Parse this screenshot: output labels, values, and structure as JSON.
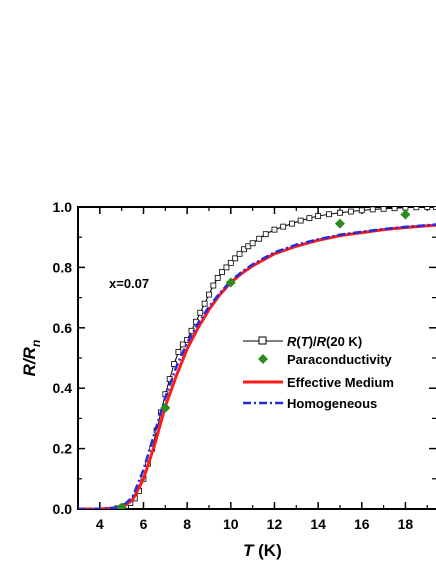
{
  "chart_data": {
    "type": "line",
    "xlim": [
      3,
      19.4
    ],
    "ylim": [
      0,
      1.0
    ],
    "x_ticks": [
      4,
      6,
      8,
      10,
      12,
      14,
      16,
      18
    ],
    "y_ticks": [
      0.0,
      0.2,
      0.4,
      0.6,
      0.8,
      1.0
    ],
    "x_tick_labels": [
      "4",
      "6",
      "8",
      "10",
      "12",
      "14",
      "16",
      "18"
    ],
    "y_tick_labels": [
      "0.0",
      "0.2",
      "0.4",
      "0.6",
      "0.8",
      "1.0"
    ],
    "xlabel_main": "T",
    "xlabel_unit": "(K)",
    "ylabel_main": "R/R",
    "ylabel_sub": "n",
    "annotation": "x=0.07",
    "legend_position": "right-middle",
    "series": [
      {
        "name": "R(T)/R(20 K)",
        "style": "line-open-squares",
        "color": "#000000",
        "x": [
          3.0,
          4.0,
          4.8,
          5.0,
          5.2,
          5.4,
          5.6,
          5.8,
          6.0,
          6.2,
          6.4,
          6.6,
          6.8,
          7.0,
          7.2,
          7.4,
          7.6,
          7.8,
          8.0,
          8.2,
          8.4,
          8.6,
          8.8,
          9.0,
          9.2,
          9.4,
          9.6,
          9.8,
          10.0,
          10.2,
          10.4,
          10.6,
          10.8,
          11.0,
          11.3,
          11.6,
          12.0,
          12.4,
          12.8,
          13.2,
          13.6,
          14.0,
          14.5,
          15.0,
          15.5,
          16.0,
          16.5,
          17.0,
          17.5,
          18.0,
          18.5,
          19.0,
          19.4
        ],
        "y": [
          0.0,
          0.0,
          0.002,
          0.005,
          0.01,
          0.02,
          0.035,
          0.06,
          0.1,
          0.15,
          0.2,
          0.26,
          0.32,
          0.38,
          0.43,
          0.48,
          0.52,
          0.545,
          0.56,
          0.59,
          0.62,
          0.65,
          0.68,
          0.71,
          0.74,
          0.765,
          0.785,
          0.8,
          0.815,
          0.83,
          0.845,
          0.86,
          0.87,
          0.88,
          0.895,
          0.91,
          0.925,
          0.935,
          0.945,
          0.955,
          0.963,
          0.97,
          0.976,
          0.981,
          0.985,
          0.989,
          0.992,
          0.994,
          0.996,
          0.998,
          0.999,
          1.0,
          1.0
        ]
      },
      {
        "name": "Paraconductivity",
        "style": "markers-diamond",
        "color": "#2e8b1e",
        "x": [
          5.0,
          7.0,
          10.0,
          15.0,
          18.0
        ],
        "y": [
          0.005,
          0.335,
          0.75,
          0.945,
          0.975
        ]
      },
      {
        "name": "Effective Medium",
        "style": "solid",
        "color": "#ff1a1a",
        "x": [
          3.0,
          4.0,
          5.0,
          5.5,
          6.0,
          6.5,
          7.0,
          7.5,
          8.0,
          8.5,
          9.0,
          9.5,
          10.0,
          10.5,
          11.0,
          12.0,
          13.0,
          14.0,
          15.0,
          16.0,
          17.0,
          18.0,
          19.4
        ],
        "y": [
          0.0,
          0.0,
          0.005,
          0.03,
          0.1,
          0.21,
          0.34,
          0.44,
          0.53,
          0.6,
          0.66,
          0.71,
          0.75,
          0.78,
          0.805,
          0.845,
          0.87,
          0.89,
          0.905,
          0.915,
          0.925,
          0.932,
          0.94
        ]
      },
      {
        "name": "Homogeneous",
        "style": "dash-dot",
        "color": "#1f2de0",
        "x": [
          3.0,
          4.0,
          5.0,
          5.5,
          6.0,
          6.5,
          7.0,
          7.5,
          8.0,
          8.5,
          9.0,
          9.5,
          10.0,
          10.5,
          11.0,
          12.0,
          13.0,
          14.0,
          15.0,
          16.0,
          17.0,
          18.0,
          19.4
        ],
        "y": [
          0.0,
          0.0,
          0.006,
          0.04,
          0.13,
          0.25,
          0.37,
          0.47,
          0.55,
          0.615,
          0.67,
          0.715,
          0.755,
          0.785,
          0.81,
          0.85,
          0.875,
          0.893,
          0.908,
          0.918,
          0.927,
          0.934,
          0.942
        ]
      }
    ]
  }
}
